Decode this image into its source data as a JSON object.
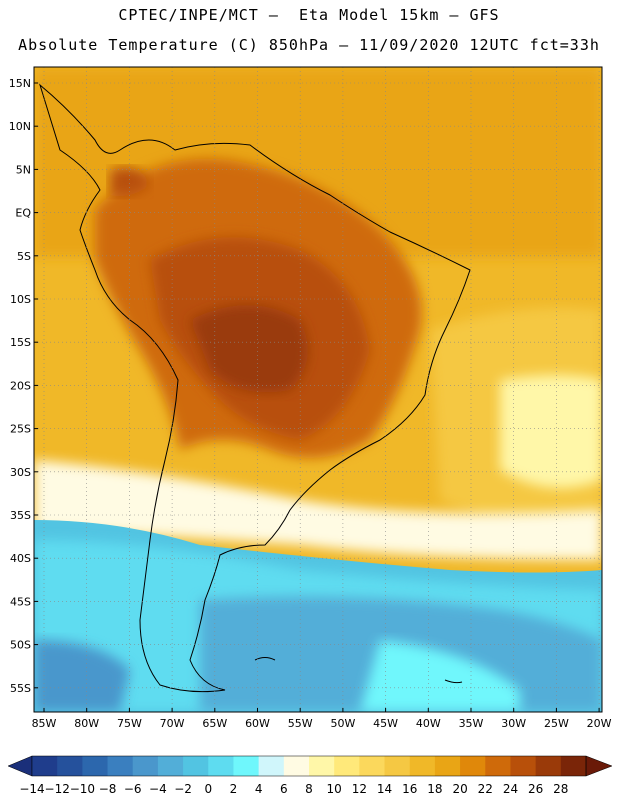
{
  "title": {
    "line1": "CPTEC/INPE/MCT –  Eta Model 15km – GFS",
    "line2": "Absolute Temperature (C) 850hPa – 11/09/2020 12UTC fct=33h"
  },
  "map": {
    "lat_labels": [
      "15N",
      "10N",
      "5N",
      "EQ",
      "5S",
      "10S",
      "15S",
      "20S",
      "25S",
      "30S",
      "35S",
      "40S",
      "45S",
      "50S",
      "55S"
    ],
    "lon_labels": [
      "85W",
      "80W",
      "75W",
      "70W",
      "65W",
      "60W",
      "55W",
      "50W",
      "45W",
      "40W",
      "35W",
      "30W",
      "25W",
      "20W"
    ],
    "gridlines": true
  },
  "colorbar": {
    "labels": [
      "-14",
      "-12",
      "-10",
      "-8",
      "-6",
      "-4",
      "-2",
      "0",
      "2",
      "4",
      "6",
      "8",
      "10",
      "12",
      "14",
      "16",
      "18",
      "20",
      "22",
      "24",
      "26",
      "28"
    ],
    "colors": [
      "#1f3d8c",
      "#25519c",
      "#2c67ad",
      "#3a7fbf",
      "#4a97cc",
      "#52aed8",
      "#52c4e2",
      "#5edcf0",
      "#6ff7fc",
      "#d0f6fb",
      "#fffbe3",
      "#fff7a8",
      "#ffe97a",
      "#fbd85c",
      "#f5c843",
      "#f0b828",
      "#e9a515",
      "#e0880a",
      "#cf6a0a",
      "#b8500a",
      "#9a3a09",
      "#7a2508"
    ],
    "low_color": "#1a2f7a",
    "high_color": "#6a1a08"
  }
}
